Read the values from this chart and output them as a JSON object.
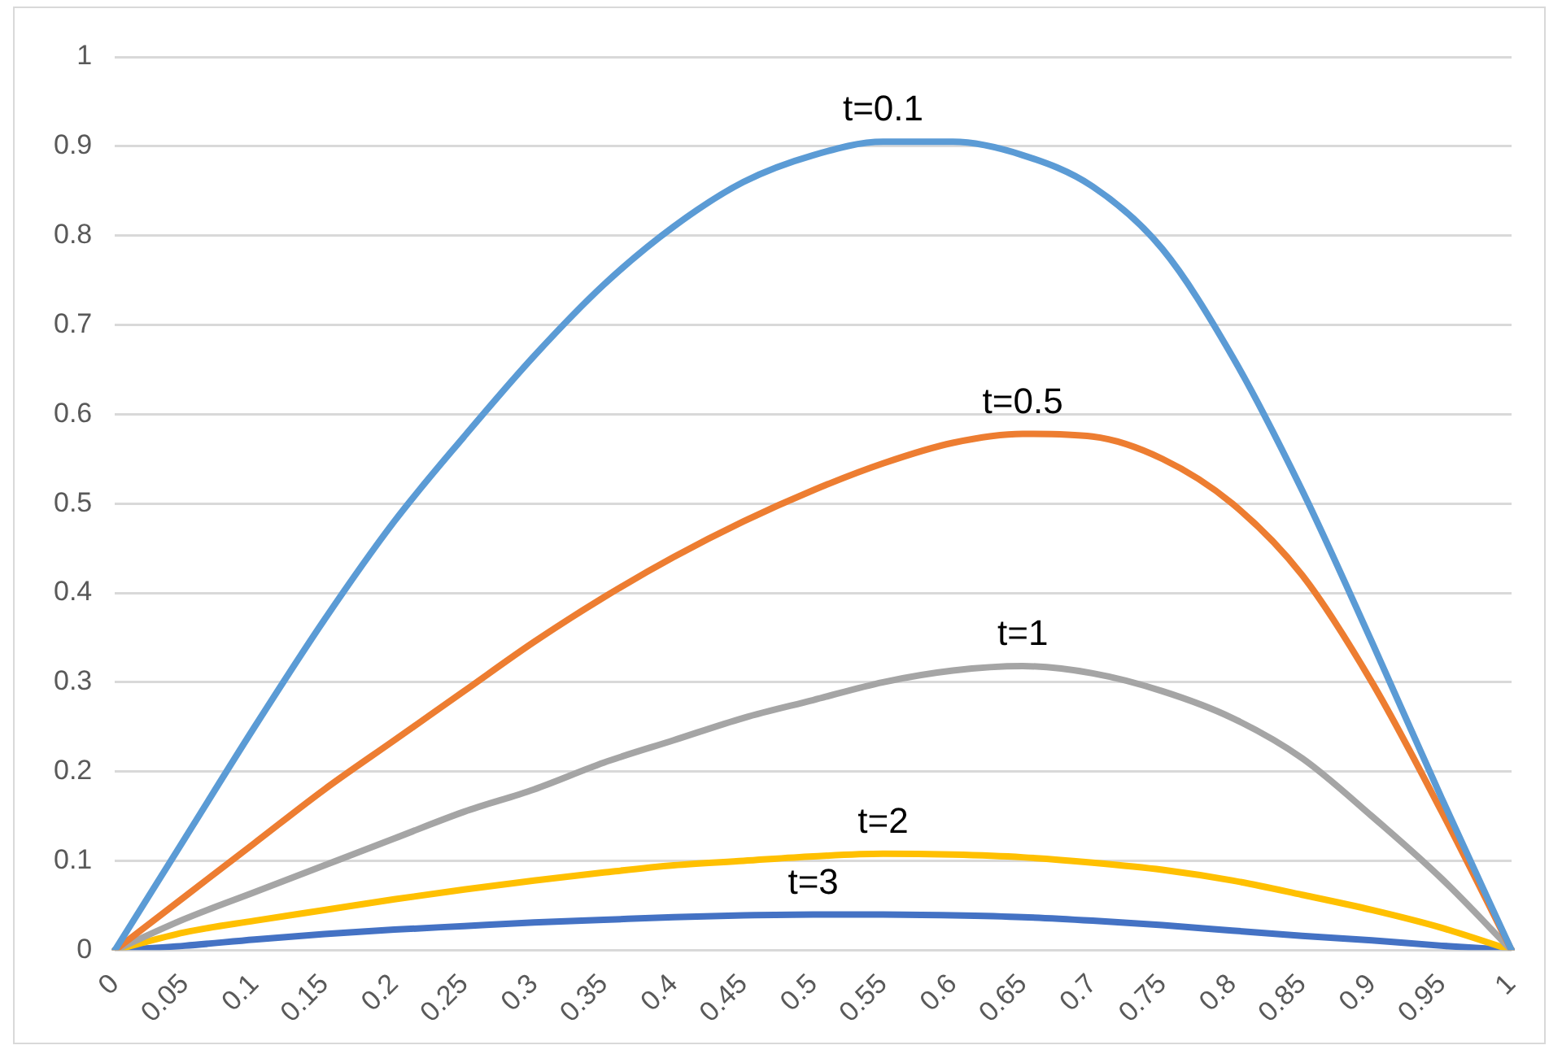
{
  "chart_data": {
    "type": "line",
    "categories": [
      "0",
      "0.05",
      "0.1",
      "0.15",
      "0.2",
      "0.25",
      "0.3",
      "0.35",
      "0.4",
      "0.45",
      "0.5",
      "0.55",
      "0.6",
      "0.65",
      "0.7",
      "0.75",
      "0.8",
      "0.85",
      "0.9",
      "0.95",
      "1"
    ],
    "series": [
      {
        "name": "t=0.1",
        "color": "#5b9bd5",
        "values": [
          0,
          0.125,
          0.25,
          0.37,
          0.48,
          0.575,
          0.665,
          0.745,
          0.81,
          0.86,
          0.89,
          0.905,
          0.905,
          0.89,
          0.855,
          0.785,
          0.665,
          0.515,
          0.345,
          0.17,
          0
        ]
      },
      {
        "name": "t=0.5",
        "color": "#ed7d31",
        "values": [
          0,
          0.06,
          0.12,
          0.18,
          0.235,
          0.29,
          0.345,
          0.395,
          0.44,
          0.48,
          0.515,
          0.545,
          0.568,
          0.578,
          0.575,
          0.55,
          0.5,
          0.42,
          0.3,
          0.155,
          0
        ]
      },
      {
        "name": "t=1",
        "color": "#a5a5a5",
        "values": [
          0,
          0.035,
          0.065,
          0.095,
          0.125,
          0.155,
          0.18,
          0.21,
          0.235,
          0.26,
          0.28,
          0.3,
          0.313,
          0.318,
          0.31,
          0.29,
          0.26,
          0.215,
          0.15,
          0.08,
          0
        ]
      },
      {
        "name": "t=2",
        "color": "#ffc000",
        "values": [
          0,
          0.02,
          0.033,
          0.045,
          0.057,
          0.068,
          0.078,
          0.087,
          0.095,
          0.1,
          0.105,
          0.108,
          0.107,
          0.104,
          0.098,
          0.09,
          0.078,
          0.062,
          0.045,
          0.025,
          0
        ]
      },
      {
        "name": "t=3",
        "color": "#4472c4",
        "values": [
          0,
          0.005,
          0.012,
          0.018,
          0.023,
          0.027,
          0.031,
          0.034,
          0.037,
          0.039,
          0.04,
          0.04,
          0.039,
          0.037,
          0.033,
          0.028,
          0.022,
          0.016,
          0.011,
          0.005,
          0
        ]
      }
    ],
    "ylim": [
      0,
      1
    ],
    "yticks": [
      0,
      0.1,
      0.2,
      0.3,
      0.4,
      0.5,
      0.6,
      0.7,
      0.8,
      0.9,
      1
    ],
    "grid": "y",
    "legend": false,
    "marker": "none",
    "line_style": "solid"
  }
}
